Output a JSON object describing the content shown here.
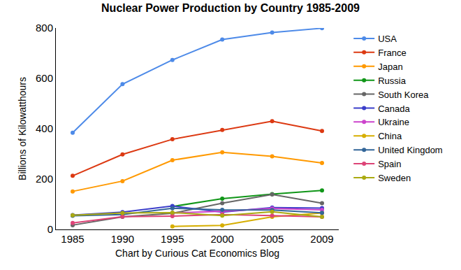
{
  "chart_data": {
    "type": "line",
    "title": "Nuclear Power Production by Country 1985-2009",
    "x_label": "Chart by Curious Cat Economics Blog",
    "y_label": "Billions of Kilowatthours",
    "categories": [
      "1985",
      "1990",
      "1995",
      "2000",
      "2005",
      "2009"
    ],
    "ylim": [
      0,
      800
    ],
    "yticks": [
      0,
      200,
      400,
      600,
      800
    ],
    "grid": false,
    "legend": "right",
    "marker": "circle",
    "series": [
      {
        "name": "USA",
        "color": "#4d8ae8",
        "values": [
          384,
          577,
          673,
          754,
          782,
          799
        ]
      },
      {
        "name": "France",
        "color": "#dc3912",
        "values": [
          213,
          298,
          358,
          395,
          430,
          391
        ]
      },
      {
        "name": "Japan",
        "color": "#ff9900",
        "values": [
          151,
          192,
          275,
          306,
          290,
          264
        ]
      },
      {
        "name": "Russia",
        "color": "#109618",
        "values": [
          null,
          null,
          91,
          122,
          140,
          155
        ]
      },
      {
        "name": "South Korea",
        "color": "#666666",
        "values": [
          17,
          50,
          64,
          104,
          139,
          104
        ]
      },
      {
        "name": "Canada",
        "color": "#3b3eca",
        "values": [
          57,
          69,
          93,
          69,
          87,
          85
        ]
      },
      {
        "name": "Ukraine",
        "color": "#cc44cc",
        "values": [
          null,
          null,
          65,
          72,
          83,
          78
        ]
      },
      {
        "name": "China",
        "color": "#d6ae00",
        "values": [
          null,
          null,
          12,
          16,
          50,
          65
        ]
      },
      {
        "name": "United Kingdom",
        "color": "#336699",
        "values": [
          54,
          59,
          84,
          78,
          77,
          66
        ]
      },
      {
        "name": "Spain",
        "color": "#dd4477",
        "values": [
          26,
          51,
          53,
          59,
          55,
          50
        ]
      },
      {
        "name": "Sweden",
        "color": "#aaaa11",
        "values": [
          56,
          65,
          67,
          55,
          70,
          50
        ]
      }
    ]
  }
}
